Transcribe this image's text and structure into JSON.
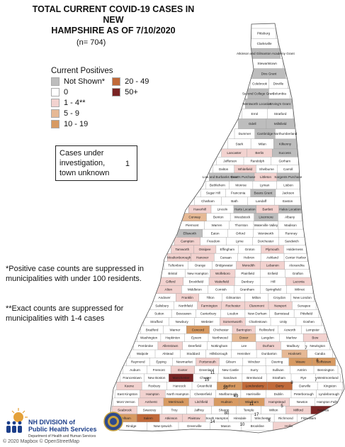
{
  "title": {
    "line1": "TOTAL CURRENT COVID-19 CASES IN NEW",
    "line2": "HAMPSHIRE AS OF 7/10/2020"
  },
  "count": "(n= 704)",
  "legend": {
    "title": "Current Positives",
    "items": [
      {
        "label": "Not Shown*",
        "color": "#bdbdbd"
      },
      {
        "label": "0",
        "color": "#ffffff"
      },
      {
        "label": "1 - 4**",
        "color": "#f2d2cf"
      },
      {
        "label": "5 - 9",
        "color": "#e6b995"
      },
      {
        "label": "10 - 19",
        "color": "#d79a62"
      },
      {
        "label": "20 - 49",
        "color": "#c16a3a"
      },
      {
        "label": "50+",
        "color": "#7a2424"
      }
    ]
  },
  "unknown": {
    "text": "Cases under investigation, town unknown",
    "value": "1"
  },
  "notes": {
    "note1": "*Positive case counts are suppressed in municipalities with under 100 residents.",
    "note2": "**Exact counts are suppressed for municipalities with 1-4 cases"
  },
  "logo": {
    "line1": "NH DIVISION of",
    "line2": "Public Health Services",
    "line3": "Department of Health and Human Services"
  },
  "credit": "© 2020 Mapbox © OpenStreetMap",
  "towns": [
    {
      "name": "Pittsburg",
      "cat": 1
    },
    {
      "name": "Clarksville",
      "cat": 1
    },
    {
      "name": "Atkinson and Gilmanton Academy Grant",
      "cat": 0
    },
    {
      "name": "Stewartstown",
      "cat": 1
    },
    {
      "name": "Dixs Grant",
      "cat": 0
    },
    {
      "name": "Colebrook",
      "cat": 1
    },
    {
      "name": "Dixville",
      "cat": 1
    },
    {
      "name": "Second College Grant",
      "cat": 0
    },
    {
      "name": "Columbia",
      "cat": 1
    },
    {
      "name": "Wentworth Location",
      "cat": 0
    },
    {
      "name": "Erving's Grant",
      "cat": 0
    },
    {
      "name": "Errol",
      "cat": 1
    },
    {
      "name": "Stratford",
      "cat": 1
    },
    {
      "name": "Odell",
      "cat": 0
    },
    {
      "name": "Millsfield",
      "cat": 0
    },
    {
      "name": "Dummer",
      "cat": 1
    },
    {
      "name": "Cambridge",
      "cat": 0
    },
    {
      "name": "Northumberland",
      "cat": 1
    },
    {
      "name": "Stark",
      "cat": 1
    },
    {
      "name": "Milan",
      "cat": 1
    },
    {
      "name": "Kilkenny",
      "cat": 0
    },
    {
      "name": "Lancaster",
      "cat": 2
    },
    {
      "name": "Berlin",
      "cat": 2
    },
    {
      "name": "Success",
      "cat": 0
    },
    {
      "name": "Jefferson",
      "cat": 1
    },
    {
      "name": "Randolph",
      "cat": 1
    },
    {
      "name": "Gorham",
      "cat": 1
    },
    {
      "name": "Dalton",
      "cat": 1
    },
    {
      "name": "Whitefield",
      "cat": 2
    },
    {
      "name": "Shelburne",
      "cat": 1
    },
    {
      "name": "Carroll",
      "cat": 1
    },
    {
      "name": "Low and Burbanks Grant",
      "cat": 0
    },
    {
      "name": "Bean's Purchase",
      "cat": 0
    },
    {
      "name": "Littleton",
      "cat": 2
    },
    {
      "name": "Sargents Purchase",
      "cat": 0
    },
    {
      "name": "Bethlehem",
      "cat": 1
    },
    {
      "name": "Monroe",
      "cat": 1
    },
    {
      "name": "Lyman",
      "cat": 1
    },
    {
      "name": "Lisbon",
      "cat": 1
    },
    {
      "name": "Sugar Hill",
      "cat": 1
    },
    {
      "name": "Franconia",
      "cat": 1
    },
    {
      "name": "Beans Grant",
      "cat": 0
    },
    {
      "name": "Jackson",
      "cat": 1
    },
    {
      "name": "Chatham",
      "cat": 1
    },
    {
      "name": "Bath",
      "cat": 1
    },
    {
      "name": "Landaff",
      "cat": 1
    },
    {
      "name": "Easton",
      "cat": 1
    },
    {
      "name": "Haverhill",
      "cat": 2
    },
    {
      "name": "Lincoln",
      "cat": 1
    },
    {
      "name": "Harts Location",
      "cat": 0
    },
    {
      "name": "Bartlett",
      "cat": 2
    },
    {
      "name": "Hales Location",
      "cat": 0
    },
    {
      "name": "Conway",
      "cat": 3
    },
    {
      "name": "Benton",
      "cat": 1
    },
    {
      "name": "Woodstock",
      "cat": 1
    },
    {
      "name": "Livermore",
      "cat": 0
    },
    {
      "name": "Albany",
      "cat": 1
    },
    {
      "name": "Piermont",
      "cat": 1
    },
    {
      "name": "Warren",
      "cat": 1
    },
    {
      "name": "Thornton",
      "cat": 1
    },
    {
      "name": "Waterville Valley",
      "cat": 1
    },
    {
      "name": "Madison",
      "cat": 1
    },
    {
      "name": "Ellsworth",
      "cat": 0
    },
    {
      "name": "Eaton",
      "cat": 1
    },
    {
      "name": "Orford",
      "cat": 1
    },
    {
      "name": "Wentworth",
      "cat": 1
    },
    {
      "name": "Rumney",
      "cat": 1
    },
    {
      "name": "Campton",
      "cat": 2
    },
    {
      "name": "Freedom",
      "cat": 1
    },
    {
      "name": "Lyme",
      "cat": 1
    },
    {
      "name": "Dorchester",
      "cat": 1
    },
    {
      "name": "Sandwich",
      "cat": 1
    },
    {
      "name": "Tamworth",
      "cat": 2
    },
    {
      "name": "Ossipee",
      "cat": 2
    },
    {
      "name": "Effingham",
      "cat": 1
    },
    {
      "name": "Groton",
      "cat": 1
    },
    {
      "name": "Plymouth",
      "cat": 2
    },
    {
      "name": "Holderness",
      "cat": 1
    },
    {
      "name": "Moultonborough",
      "cat": 2
    },
    {
      "name": "Hanover",
      "cat": 2
    },
    {
      "name": "Canaan",
      "cat": 1
    },
    {
      "name": "Hebron",
      "cat": 1
    },
    {
      "name": "Ashland",
      "cat": 1
    },
    {
      "name": "Center Harbor",
      "cat": 1
    },
    {
      "name": "Tuftonboro",
      "cat": 1
    },
    {
      "name": "Orange",
      "cat": 1
    },
    {
      "name": "Bridgewater",
      "cat": 1
    },
    {
      "name": "Meredith",
      "cat": 2
    },
    {
      "name": "Lebanon",
      "cat": 2
    },
    {
      "name": "Alexandria",
      "cat": 1
    },
    {
      "name": "Bristol",
      "cat": 1
    },
    {
      "name": "New Hampton",
      "cat": 1
    },
    {
      "name": "Wolfeboro",
      "cat": 2
    },
    {
      "name": "Plainfield",
      "cat": 1
    },
    {
      "name": "Enfield",
      "cat": 1
    },
    {
      "name": "Grafton",
      "cat": 1
    },
    {
      "name": "Gilford",
      "cat": 2
    },
    {
      "name": "Brookfield",
      "cat": 1
    },
    {
      "name": "Wakefield",
      "cat": 2
    },
    {
      "name": "Danbury",
      "cat": 1
    },
    {
      "name": "Hill",
      "cat": 1
    },
    {
      "name": "Laconia",
      "cat": 2
    },
    {
      "name": "Alton",
      "cat": 2
    },
    {
      "name": "Middleton",
      "cat": 1
    },
    {
      "name": "Cornish",
      "cat": 1
    },
    {
      "name": "Grantham",
      "cat": 1
    },
    {
      "name": "Springfield",
      "cat": 1
    },
    {
      "name": "Wilmot",
      "cat": 1
    },
    {
      "name": "Andover",
      "cat": 1
    },
    {
      "name": "Franklin",
      "cat": 2
    },
    {
      "name": "Tilton",
      "cat": 1
    },
    {
      "name": "Gilmanton",
      "cat": 1
    },
    {
      "name": "Milton",
      "cat": 1
    },
    {
      "name": "Croydon",
      "cat": 1
    },
    {
      "name": "New London",
      "cat": 1
    },
    {
      "name": "Salisbury",
      "cat": 1
    },
    {
      "name": "Northfield",
      "cat": 1
    },
    {
      "name": "Farmington",
      "cat": 2
    },
    {
      "name": "Rochester",
      "cat": 2
    },
    {
      "name": "Claremont",
      "cat": 2
    },
    {
      "name": "Newport",
      "cat": 2
    },
    {
      "name": "Sunapee",
      "cat": 1
    },
    {
      "name": "Sutton",
      "cat": 1
    },
    {
      "name": "Boscawen",
      "cat": 1
    },
    {
      "name": "Canterbury",
      "cat": 1
    },
    {
      "name": "Loudon",
      "cat": 1
    },
    {
      "name": "New Durham",
      "cat": 1
    },
    {
      "name": "Barnstead",
      "cat": 1
    },
    {
      "name": "Pittsfield",
      "cat": 1
    },
    {
      "name": "Strafford",
      "cat": 1
    },
    {
      "name": "Newbury",
      "cat": 1
    },
    {
      "name": "Webster",
      "cat": 1
    },
    {
      "name": "Somersworth",
      "cat": 2
    },
    {
      "name": "Charlestown",
      "cat": 1
    },
    {
      "name": "Unity",
      "cat": 1
    },
    {
      "name": "Goshen",
      "cat": 1
    },
    {
      "name": "Bradford",
      "cat": 1
    },
    {
      "name": "Warner",
      "cat": 1
    },
    {
      "name": "Concord",
      "cat": 4
    },
    {
      "name": "Chichester",
      "cat": 1
    },
    {
      "name": "Barrington",
      "cat": 2
    },
    {
      "name": "Rollinsford",
      "cat": 1
    },
    {
      "name": "Acworth",
      "cat": 1
    },
    {
      "name": "Lempster",
      "cat": 1
    },
    {
      "name": "Washington",
      "cat": 1
    },
    {
      "name": "Hopkinton",
      "cat": 1
    },
    {
      "name": "Epsom",
      "cat": 1
    },
    {
      "name": "Northwood",
      "cat": 1
    },
    {
      "name": "Dover",
      "cat": 3
    },
    {
      "name": "Langdon",
      "cat": 1
    },
    {
      "name": "Marlow",
      "cat": 1
    },
    {
      "name": "Bow",
      "cat": 2
    },
    {
      "name": "Pembroke",
      "cat": 1
    },
    {
      "name": "Allenstown",
      "cat": 2
    },
    {
      "name": "Deerfield",
      "cat": 1
    },
    {
      "name": "Nottingham",
      "cat": 1
    },
    {
      "name": "Lee",
      "cat": 1
    },
    {
      "name": "Durham",
      "cat": 2
    },
    {
      "name": "Madbury",
      "cat": 1
    },
    {
      "name": "Newington",
      "cat": 1
    },
    {
      "name": "Walpole",
      "cat": 1
    },
    {
      "name": "Alstead",
      "cat": 1
    },
    {
      "name": "Stoddard",
      "cat": 1
    },
    {
      "name": "Hillsborough",
      "cat": 1
    },
    {
      "name": "Henniker",
      "cat": 1
    },
    {
      "name": "Dunbarton",
      "cat": 1
    },
    {
      "name": "Hooksett",
      "cat": 3
    },
    {
      "name": "Candia",
      "cat": 1
    },
    {
      "name": "Raymond",
      "cat": 1
    },
    {
      "name": "Epping",
      "cat": 1
    },
    {
      "name": "Newmarket",
      "cat": 1
    },
    {
      "name": "Portsmouth",
      "cat": 2
    },
    {
      "name": "Gilsum",
      "cat": 1
    },
    {
      "name": "Windsor",
      "cat": 1
    },
    {
      "name": "Deering",
      "cat": 1
    },
    {
      "name": "Weare",
      "cat": 4
    },
    {
      "name": "Goffstown",
      "cat": 4
    },
    {
      "name": "Auburn",
      "cat": 1
    },
    {
      "name": "Fremont",
      "cat": 1
    },
    {
      "name": "Exeter",
      "cat": 2
    },
    {
      "name": "Greenland",
      "cat": 1
    },
    {
      "name": "New Castle",
      "cat": 1
    },
    {
      "name": "Surry",
      "cat": 1
    },
    {
      "name": "Sullivan",
      "cat": 1
    },
    {
      "name": "Antrim",
      "cat": 1
    },
    {
      "name": "Bennington",
      "cat": 1
    },
    {
      "name": "Francestown",
      "cat": 1
    },
    {
      "name": "New Boston",
      "cat": 1
    },
    {
      "name": "Manchester",
      "cat": 6
    },
    {
      "name": "Chester",
      "cat": 1
    },
    {
      "name": "Sandown",
      "cat": 1
    },
    {
      "name": "Brentwood",
      "cat": 1
    },
    {
      "name": "Stratham",
      "cat": 1
    },
    {
      "name": "Rye",
      "cat": 1
    },
    {
      "name": "Westmoreland",
      "cat": 1
    },
    {
      "name": "Keene",
      "cat": 2
    },
    {
      "name": "Roxbury",
      "cat": 1
    },
    {
      "name": "Hancock",
      "cat": 1
    },
    {
      "name": "Greenfield",
      "cat": 1
    },
    {
      "name": "Bedford",
      "cat": 4
    },
    {
      "name": "Londonderry",
      "cat": 5
    },
    {
      "name": "Derry",
      "cat": 5
    },
    {
      "name": "Danville",
      "cat": 1
    },
    {
      "name": "Kingston",
      "cat": 1
    },
    {
      "name": "East Kingston",
      "cat": 1
    },
    {
      "name": "Hampton",
      "cat": 2
    },
    {
      "name": "North Hampton",
      "cat": 1
    },
    {
      "name": "Chesterfield",
      "cat": 1
    },
    {
      "name": "Marlborough",
      "cat": 1
    },
    {
      "name": "Harrisville",
      "cat": 1
    },
    {
      "name": "Dublin",
      "cat": 1
    },
    {
      "name": "Peterborough",
      "cat": 1
    },
    {
      "name": "Lyndeborough",
      "cat": 1
    },
    {
      "name": "Mont Vernon",
      "cat": 1
    },
    {
      "name": "Amherst",
      "cat": 2
    },
    {
      "name": "Merrimack",
      "cat": 4
    },
    {
      "name": "Litchfield",
      "cat": 2
    },
    {
      "name": "Hudson",
      "cat": 4
    },
    {
      "name": "Windham",
      "cat": 4
    },
    {
      "name": "Hampstead",
      "cat": 2
    },
    {
      "name": "Newton",
      "cat": 1
    },
    {
      "name": "Hampton Falls",
      "cat": 1
    },
    {
      "name": "Seabrook",
      "cat": 2
    },
    {
      "name": "Swanzey",
      "cat": 1
    },
    {
      "name": "Troy",
      "cat": 1
    },
    {
      "name": "Jaffrey",
      "cat": 1
    },
    {
      "name": "Sharon",
      "cat": 1
    },
    {
      "name": "Temple",
      "cat": 1
    },
    {
      "name": "Wilton",
      "cat": 1
    },
    {
      "name": "Milford",
      "cat": 2
    },
    {
      "name": "Nashua",
      "cat": 6
    },
    {
      "name": "Pelham",
      "cat": 4
    },
    {
      "name": "Salem",
      "cat": 5
    },
    {
      "name": "Atkinson",
      "cat": 2
    },
    {
      "name": "Plaistow",
      "cat": 2
    },
    {
      "name": "South Hampton",
      "cat": 1
    },
    {
      "name": "Hinsdale",
      "cat": 1
    },
    {
      "name": "Winchester",
      "cat": 1
    },
    {
      "name": "Richmond",
      "cat": 1
    },
    {
      "name": "Fitzwilliam",
      "cat": 1
    },
    {
      "name": "Rindge",
      "cat": 1
    },
    {
      "name": "New Ipswich",
      "cat": 1
    },
    {
      "name": "Greenville",
      "cat": 1
    },
    {
      "name": "Mason",
      "cat": 1
    },
    {
      "name": "Brookline",
      "cat": 1
    },
    {
      "name": "Hollis",
      "cat": 2
    }
  ],
  "map_numbers": [
    "7",
    "11",
    "10",
    "15",
    "49",
    "11",
    "80",
    "17",
    "14",
    "10",
    "6",
    "5",
    "8",
    "7",
    "6"
  ]
}
